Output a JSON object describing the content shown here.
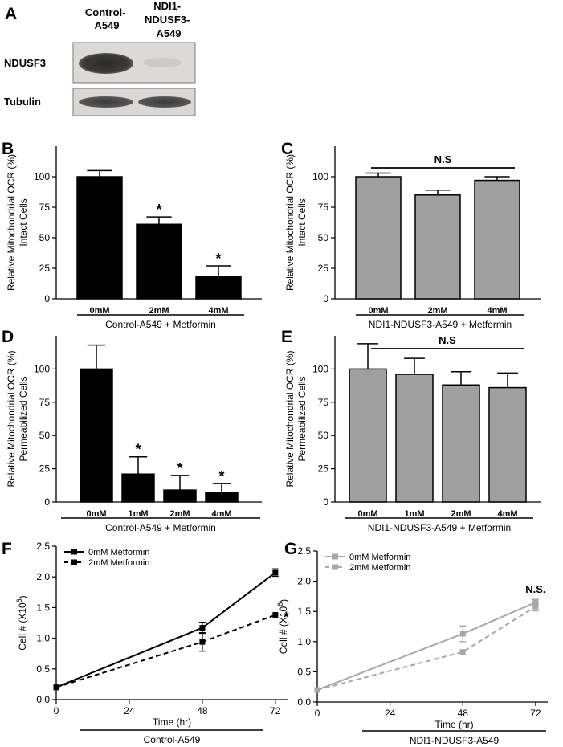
{
  "panel_a": {
    "letter": "A",
    "lane_labels": [
      [
        "Control-",
        "A549"
      ],
      [
        "NDI1-",
        "NDUSF3-",
        "A549"
      ]
    ],
    "row_labels": [
      "NDUSF3",
      "Tubulin"
    ]
  },
  "chart_data": [
    {
      "panel": "B",
      "type": "bar",
      "color": "#000000",
      "ylabel": [
        "Relative Mitochondrial OCR (%)",
        "Intact Cells"
      ],
      "xlabel": "Control-A549 + Metformin",
      "categories": [
        "0mM",
        "2mM",
        "4mM"
      ],
      "values": [
        100,
        61,
        18
      ],
      "errors": [
        5,
        6,
        9
      ],
      "significance": [
        "",
        "*",
        "*"
      ],
      "yticks": [
        0,
        25,
        50,
        75,
        100
      ],
      "ylim": [
        0,
        125
      ],
      "grid": false
    },
    {
      "panel": "C",
      "type": "bar",
      "color": "#a0a0a0",
      "ylabel": [
        "Relative Mitochondrial OCR (%)",
        "Intact Cells"
      ],
      "xlabel": "NDI1-NDUSF3-A549 + Metformin",
      "categories": [
        "0mM",
        "2mM",
        "4mM"
      ],
      "values": [
        100,
        85,
        97
      ],
      "errors": [
        3,
        4,
        3
      ],
      "significance": [
        "",
        "",
        ""
      ],
      "bracket": "N.S",
      "yticks": [
        0,
        25,
        50,
        75,
        100
      ],
      "ylim": [
        0,
        125
      ],
      "grid": false
    },
    {
      "panel": "D",
      "type": "bar",
      "color": "#000000",
      "ylabel": [
        "Relative Mitochondrial OCR (%)",
        "Permeabilized Cells"
      ],
      "xlabel": "Control-A549 + Metformin",
      "categories": [
        "0mM",
        "1mM",
        "2mM",
        "4mM"
      ],
      "values": [
        100,
        21,
        9,
        7
      ],
      "errors": [
        18,
        13,
        11,
        7
      ],
      "significance": [
        "",
        "*",
        "*",
        "*"
      ],
      "yticks": [
        0,
        25,
        50,
        75,
        100
      ],
      "ylim": [
        0,
        125
      ],
      "grid": false
    },
    {
      "panel": "E",
      "type": "bar",
      "color": "#a0a0a0",
      "ylabel": [
        "Relative Mitochondrial OCR (%)",
        "Permeabilized Cells"
      ],
      "xlabel": "NDI1-NDUSF3-A549 + Metformin",
      "categories": [
        "0mM",
        "1mM",
        "2mM",
        "4mM"
      ],
      "values": [
        100,
        96,
        88,
        86
      ],
      "errors": [
        19,
        12,
        10,
        11
      ],
      "significance": [
        "",
        "",
        "",
        ""
      ],
      "bracket": "N.S",
      "yticks": [
        0,
        25,
        50,
        75,
        100
      ],
      "ylim": [
        0,
        125
      ],
      "grid": false
    },
    {
      "panel": "F",
      "type": "line",
      "ylabel": "Cell # (X10",
      "ylabel_sup": "6",
      "ylabel_close": ")",
      "xlabel": "Time (hr)",
      "group_label": "Control-A549",
      "x": [
        0,
        48,
        72
      ],
      "xticks": [
        0,
        24,
        48,
        72
      ],
      "xlim": [
        0,
        76
      ],
      "yticks": [
        0.0,
        0.5,
        1.0,
        1.5,
        2.0,
        2.5
      ],
      "ylim": [
        0,
        2.5
      ],
      "legend": "top-left",
      "annotation": "*",
      "series": [
        {
          "name": "0mM Metformin",
          "values": [
            0.2,
            1.17,
            2.07
          ],
          "errors": [
            0.02,
            0.09,
            0.06
          ],
          "color": "#000000",
          "dashed": false
        },
        {
          "name": "2mM Metformin",
          "values": [
            0.2,
            0.94,
            1.38
          ],
          "errors": [
            0.02,
            0.15,
            0.02
          ],
          "color": "#000000",
          "dashed": true
        }
      ]
    },
    {
      "panel": "G",
      "type": "line",
      "ylabel": "Cell # (X10",
      "ylabel_sup": "6",
      "ylabel_close": ")",
      "xlabel": "Time (hr)",
      "group_label": "NDI1-NDUSF3-A549",
      "x": [
        0,
        48,
        72
      ],
      "xticks": [
        0,
        24,
        48,
        72
      ],
      "xlim": [
        0,
        76
      ],
      "yticks": [
        0.0,
        0.5,
        1.0,
        1.5,
        2.0,
        2.5
      ],
      "ylim": [
        0,
        2.5
      ],
      "legend": "top-left",
      "annotation": "N.S.",
      "series": [
        {
          "name": "0mM Metformin",
          "values": [
            0.2,
            1.13,
            1.65
          ],
          "errors": [
            0.02,
            0.13,
            0.05
          ],
          "color": "#a8a8a8",
          "dashed": false
        },
        {
          "name": "2mM Metformin",
          "values": [
            0.2,
            0.83,
            1.58
          ],
          "errors": [
            0.02,
            0.03,
            0.07
          ],
          "color": "#a8a8a8",
          "dashed": true
        }
      ]
    }
  ]
}
